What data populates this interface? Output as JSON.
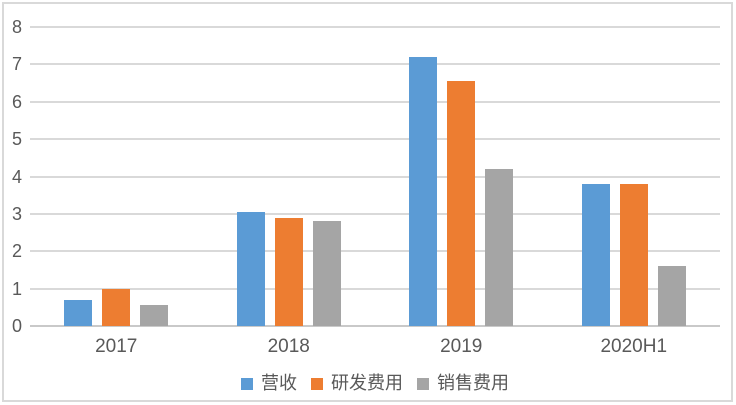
{
  "chart_data": {
    "type": "bar",
    "title": "",
    "xlabel": "",
    "ylabel": "",
    "categories": [
      "2017",
      "2018",
      "2019",
      "2020H1"
    ],
    "series": [
      {
        "name": "营收",
        "color": "#5B9BD5",
        "values": [
          0.7,
          3.05,
          7.2,
          3.8
        ]
      },
      {
        "name": "研发费用",
        "color": "#ED7D31",
        "values": [
          1.0,
          2.9,
          6.55,
          3.8
        ]
      },
      {
        "name": "销售费用",
        "color": "#A5A5A5",
        "values": [
          0.55,
          2.8,
          4.2,
          1.6
        ]
      }
    ],
    "ylim": [
      0,
      8
    ],
    "ytick_step": 1,
    "yticks": [
      0,
      1,
      2,
      3,
      4,
      5,
      6,
      7,
      8
    ],
    "grid": true,
    "legend_position": "bottom"
  },
  "colors": {
    "gridline": "#D9D9D9",
    "axis_line": "#C9C9C9",
    "frame_border": "#D9D9D9",
    "tick_text": "#595959",
    "background": "#FFFFFF"
  }
}
